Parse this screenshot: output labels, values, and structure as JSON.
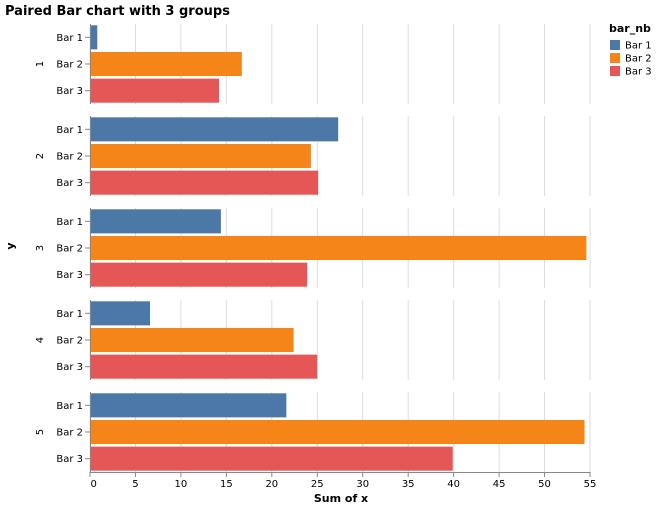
{
  "chart_data": {
    "type": "bar",
    "orientation": "horizontal",
    "title": "Paired Bar chart with 3 groups",
    "xlabel": "Sum of x",
    "ylabel": "y",
    "xlim": [
      0,
      55
    ],
    "x_ticks": [
      0,
      5,
      10,
      15,
      20,
      25,
      30,
      35,
      40,
      45,
      50,
      55
    ],
    "grid": true,
    "legend": {
      "title": "bar_nb",
      "placement": "top-right"
    },
    "categories": [
      "1",
      "2",
      "3",
      "4",
      "5"
    ],
    "bar_labels": [
      "Bar 1",
      "Bar 2",
      "Bar 3"
    ],
    "series": [
      {
        "name": "Bar 1",
        "color": "#4c78a8",
        "values": [
          0.8,
          27.3,
          14.4,
          6.6,
          21.6
        ]
      },
      {
        "name": "Bar 2",
        "color": "#f58518",
        "values": [
          16.7,
          24.3,
          54.6,
          22.4,
          54.4
        ]
      },
      {
        "name": "Bar 3",
        "color": "#e45756",
        "values": [
          14.2,
          25.1,
          23.9,
          25.0,
          39.9
        ]
      }
    ]
  }
}
